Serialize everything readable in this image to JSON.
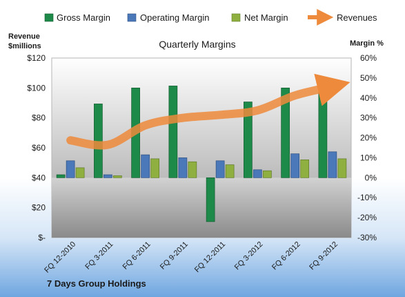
{
  "chart_data": {
    "type": "bar",
    "title": "Quarterly Margins",
    "company": "7 Days Group Holdings",
    "ylabel_left": "Revenue $millions",
    "ylabel_right": "Margin %",
    "categories": [
      "FQ 12-2010",
      "FQ 3-2011",
      "FQ 6-2011",
      "FQ 9-2011",
      "FQ 12-2011",
      "FQ 3-2012",
      "FQ 6-2012",
      "FQ 9-2012"
    ],
    "ylim_left": [
      0,
      120
    ],
    "ylim_right": [
      -30,
      60
    ],
    "left_ticks": [
      "$-",
      "$20",
      "$40",
      "$60",
      "$80",
      "$100",
      "$120"
    ],
    "right_ticks": [
      "-30%",
      "-20%",
      "-10%",
      "0%",
      "10%",
      "20%",
      "30%",
      "40%",
      "50%",
      "60%"
    ],
    "series": [
      {
        "name": "Gross Margin",
        "axis": "right",
        "color": "#1e8a4a",
        "values": [
          1.5,
          37,
          45,
          46,
          -22,
          38,
          45,
          47
        ]
      },
      {
        "name": "Operating Margin",
        "axis": "right",
        "color": "#4a78b8",
        "values": [
          8.5,
          1.5,
          11.5,
          10,
          8.5,
          4,
          12,
          13
        ]
      },
      {
        "name": "Net Margin",
        "axis": "right",
        "color": "#8fb040",
        "values": [
          5,
          1,
          9.5,
          8,
          6.5,
          3.5,
          9,
          9.5
        ]
      },
      {
        "name": "Revenues",
        "axis": "left",
        "type": "line",
        "color": "#ee8a3c",
        "values": [
          65,
          62,
          75,
          80,
          82,
          85,
          95,
          101
        ]
      }
    ],
    "grid": false,
    "legend_position": "top"
  }
}
